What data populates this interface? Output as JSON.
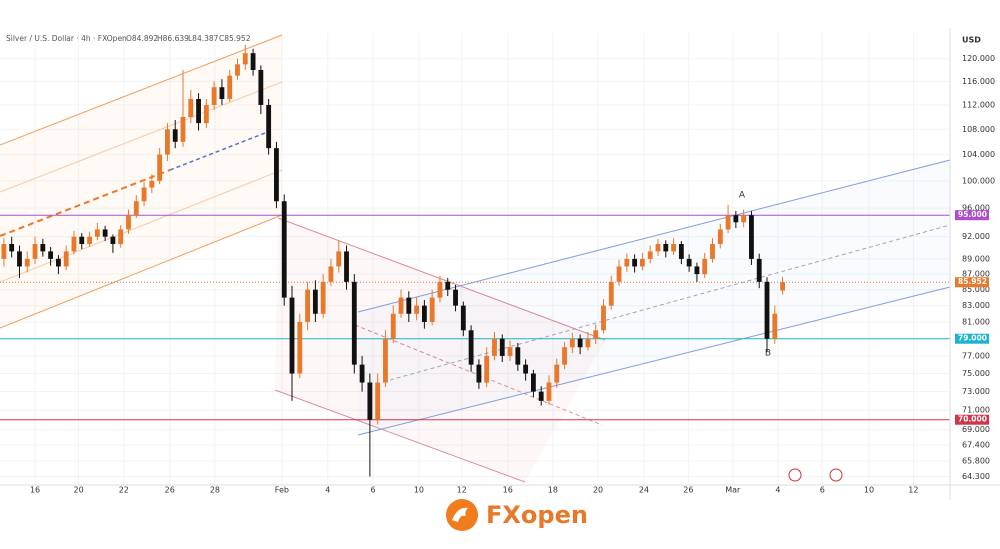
{
  "chart_data": {
    "type": "candlestick",
    "title": "Silver / U.S. Dollar · 4h · FXOpen",
    "ohlc_text": [
      "O84.892",
      "H86.639",
      "L84.387",
      "C85.952"
    ],
    "currency": "USD",
    "brand": "FXopen",
    "log_scale": true,
    "up_color": "#e8782a",
    "down_color": "#111111",
    "ylim": [
      63.5,
      124.7
    ],
    "xlim": [
      -0.5,
      121.5
    ],
    "yticks": [
      {
        "value": 120,
        "label": "120.000"
      },
      {
        "value": 116,
        "label": "116.000"
      },
      {
        "value": 112,
        "label": "112.000"
      },
      {
        "value": 108,
        "label": "108.000"
      },
      {
        "value": 104,
        "label": "104.000"
      },
      {
        "value": 100,
        "label": "100.000"
      },
      {
        "value": 96,
        "label": "96.000"
      },
      {
        "value": 92,
        "label": "92.000"
      },
      {
        "value": 89,
        "label": "89.000"
      },
      {
        "value": 87,
        "label": "87.000"
      },
      {
        "value": 85,
        "label": "85.000"
      },
      {
        "value": 83,
        "label": "83.000"
      },
      {
        "value": 81,
        "label": "81.000"
      },
      {
        "value": 77,
        "label": "77.000"
      },
      {
        "value": 75,
        "label": "75.000"
      },
      {
        "value": 73,
        "label": "73.000"
      },
      {
        "value": 71,
        "label": "71.000"
      },
      {
        "value": 69,
        "label": "69.000"
      },
      {
        "value": 67.4,
        "label": "67.400"
      },
      {
        "value": 65.8,
        "label": "65.800"
      },
      {
        "value": 64.3,
        "label": "64.300"
      }
    ],
    "xticks": [
      {
        "value": 4.0,
        "label": "16"
      },
      {
        "value": 9.6,
        "label": "20"
      },
      {
        "value": 15.4,
        "label": "22"
      },
      {
        "value": 21.3,
        "label": "26"
      },
      {
        "value": 27.1,
        "label": "28"
      },
      {
        "value": 35.7,
        "label": "Feb"
      },
      {
        "value": 41.6,
        "label": "4"
      },
      {
        "value": 47.4,
        "label": "6"
      },
      {
        "value": 53.3,
        "label": "10"
      },
      {
        "value": 58.8,
        "label": "12"
      },
      {
        "value": 64.7,
        "label": "16"
      },
      {
        "value": 70.5,
        "label": "18"
      },
      {
        "value": 76.3,
        "label": "20"
      },
      {
        "value": 82.2,
        "label": "24"
      },
      {
        "value": 87.9,
        "label": "26"
      },
      {
        "value": 93.6,
        "label": "Mar"
      },
      {
        "value": 99.4,
        "label": "4"
      },
      {
        "value": 105.1,
        "label": "6"
      },
      {
        "value": 111.1,
        "label": "10"
      },
      {
        "value": 116.8,
        "label": "12"
      }
    ],
    "levels": [
      {
        "value": 95,
        "label": "95.000",
        "color": "#b04ad0"
      },
      {
        "value": 85.952,
        "label": "85.952",
        "color": "#e8782a"
      },
      {
        "value": 79,
        "label": "79.000",
        "color": "#1bb3d0"
      },
      {
        "value": 70,
        "label": "70.000",
        "color": "#d0364a"
      }
    ],
    "annotations": [
      "A",
      "B"
    ],
    "ohlc": [
      [
        89,
        91.8,
        88,
        91
      ],
      [
        91,
        92,
        89.2,
        90
      ],
      [
        90,
        90.8,
        86.5,
        88
      ],
      [
        88,
        90,
        87.2,
        89
      ],
      [
        89,
        92,
        88.3,
        91
      ],
      [
        91,
        91.7,
        89.3,
        90
      ],
      [
        90,
        90.6,
        88.1,
        89
      ],
      [
        89,
        89.5,
        87,
        88
      ],
      [
        88,
        90.8,
        87.5,
        90
      ],
      [
        90,
        92.8,
        89.6,
        92
      ],
      [
        92,
        92.5,
        90.3,
        91
      ],
      [
        91,
        92.7,
        90.6,
        92
      ],
      [
        92,
        93.9,
        91.5,
        93
      ],
      [
        93,
        93.5,
        91.4,
        92
      ],
      [
        92,
        92.3,
        89.8,
        91
      ],
      [
        91,
        93.6,
        90.5,
        93
      ],
      [
        93,
        95.8,
        92.4,
        95
      ],
      [
        95,
        97.9,
        94.6,
        97
      ],
      [
        97,
        99.8,
        96.3,
        99
      ],
      [
        99,
        101,
        98.2,
        100
      ],
      [
        100,
        105,
        99.5,
        104
      ],
      [
        104,
        109,
        103,
        108
      ],
      [
        108,
        109.5,
        105,
        106
      ],
      [
        106,
        118,
        105.2,
        110
      ],
      [
        110,
        114.5,
        109,
        113
      ],
      [
        113,
        114,
        107.8,
        109
      ],
      [
        109,
        113,
        108.2,
        112
      ],
      [
        112,
        116,
        111.2,
        115
      ],
      [
        115,
        116.4,
        112,
        113
      ],
      [
        113,
        118,
        112.5,
        117
      ],
      [
        117,
        120,
        116.3,
        119
      ],
      [
        119,
        122.5,
        118,
        121
      ],
      [
        121,
        121.8,
        117,
        118
      ],
      [
        118,
        118.8,
        110.5,
        112
      ],
      [
        112,
        113,
        104,
        105
      ],
      [
        105,
        106,
        96,
        97
      ],
      [
        97,
        98,
        83,
        84
      ],
      [
        84,
        85.5,
        72,
        75
      ],
      [
        75,
        82,
        74.5,
        81
      ],
      [
        81,
        86,
        80,
        85
      ],
      [
        85,
        86.2,
        81,
        82
      ],
      [
        82,
        87,
        81.5,
        86
      ],
      [
        86,
        89,
        85.5,
        88
      ],
      [
        88,
        91.5,
        87.2,
        90
      ],
      [
        90,
        90.8,
        85,
        86
      ],
      [
        86,
        87,
        75,
        76
      ],
      [
        76,
        77,
        73,
        74
      ],
      [
        74,
        75,
        64.3,
        70
      ],
      [
        70,
        75,
        69.5,
        74
      ],
      [
        74,
        80,
        73.5,
        79
      ],
      [
        79,
        83,
        78.5,
        82
      ],
      [
        82,
        85,
        81.5,
        84
      ],
      [
        84,
        84.8,
        81,
        82
      ],
      [
        82,
        84,
        81.2,
        83
      ],
      [
        83,
        83.7,
        80.2,
        81
      ],
      [
        81,
        85,
        80.6,
        84
      ],
      [
        84,
        86.8,
        83.4,
        86
      ],
      [
        86,
        86.5,
        84.2,
        85
      ],
      [
        85,
        85.6,
        82.3,
        83
      ],
      [
        83,
        83.5,
        79.3,
        80
      ],
      [
        80,
        80.6,
        75.2,
        76
      ],
      [
        76,
        76.6,
        73.3,
        74
      ],
      [
        74,
        78,
        73.5,
        77
      ],
      [
        77,
        79.8,
        76.5,
        79
      ],
      [
        79,
        79.5,
        76.3,
        77
      ],
      [
        77,
        78.8,
        76.4,
        78
      ],
      [
        78,
        78.5,
        75.3,
        76
      ],
      [
        76,
        76.6,
        74.2,
        75
      ],
      [
        75,
        75.4,
        72.4,
        73
      ],
      [
        73,
        73.6,
        71.5,
        72
      ],
      [
        72,
        74.8,
        71.6,
        74
      ],
      [
        74,
        76.7,
        73.4,
        76
      ],
      [
        76,
        78.6,
        75.5,
        78
      ],
      [
        78,
        79.7,
        77.3,
        79
      ],
      [
        79,
        79.5,
        77.2,
        78
      ],
      [
        78,
        79.8,
        77.6,
        79
      ],
      [
        79,
        80.7,
        78.4,
        80
      ],
      [
        80,
        83.8,
        79.6,
        83
      ],
      [
        83,
        86.8,
        82.5,
        86
      ],
      [
        86,
        88.9,
        85.5,
        88
      ],
      [
        88,
        89.7,
        87.3,
        89
      ],
      [
        89,
        89.6,
        87.2,
        88
      ],
      [
        88,
        89.8,
        87.5,
        89
      ],
      [
        89,
        90.8,
        88.4,
        90
      ],
      [
        90,
        91.7,
        89.4,
        91
      ],
      [
        91,
        91.5,
        89.2,
        90
      ],
      [
        90,
        91.8,
        89.5,
        91
      ],
      [
        91,
        91.4,
        88.3,
        89
      ],
      [
        89,
        89.6,
        87.3,
        88
      ],
      [
        88,
        88.5,
        86,
        87
      ],
      [
        87,
        89.8,
        86.5,
        89
      ],
      [
        89,
        91.8,
        88.5,
        91
      ],
      [
        91,
        93.8,
        90.4,
        93
      ],
      [
        93,
        96.5,
        92.5,
        95
      ],
      [
        95,
        95.6,
        93.2,
        94
      ],
      [
        94,
        95.8,
        93.3,
        95
      ],
      [
        95,
        95.6,
        88.2,
        89
      ],
      [
        89,
        89.7,
        85.2,
        86
      ],
      [
        86,
        86.6,
        77.5,
        79
      ],
      [
        79,
        83,
        78.4,
        82
      ],
      [
        84.892,
        86.639,
        84.387,
        85.952
      ]
    ]
  }
}
